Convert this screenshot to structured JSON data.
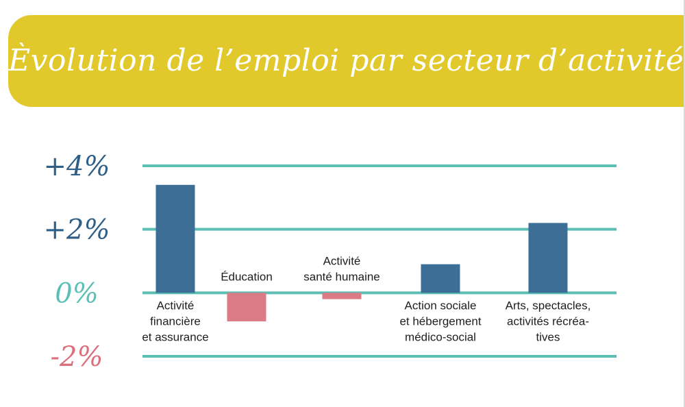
{
  "title": "Èvolution de l’emploi par secteur d’activité",
  "colors": {
    "banner": "#e1c92b",
    "title_text": "#ffffff",
    "gridline": "#5bbfb4",
    "positive_bar": "#3d6e96",
    "negative_bar": "#db7b85",
    "tick_positive": "#2f5e86",
    "tick_zero": "#5bbfb4",
    "tick_negative": "#d9707c",
    "label_text": "#1e1e1e"
  },
  "chart_data": {
    "type": "bar",
    "title": "Èvolution de l’emploi par secteur d’activité",
    "categories": [
      "Activité financière et assurance",
      "Éducation",
      "Activité santé humaine",
      "Action sociale et hébergement médico-social",
      "Arts, spectacles, activités récréatives"
    ],
    "category_label_lines": [
      [
        "Activité",
        "financière",
        "et assurance"
      ],
      [
        "Éducation"
      ],
      [
        "Activité",
        "santé humaine"
      ],
      [
        "Action sociale",
        "et hébergement",
        "médico-social"
      ],
      [
        "Arts, spectacles,",
        "activités récréa-",
        "tives"
      ]
    ],
    "values": [
      3.4,
      -0.9,
      -0.2,
      0.9,
      2.2
    ],
    "unit": "%",
    "ylim": [
      -2,
      4
    ],
    "yticks": [
      4,
      2,
      0,
      -2
    ],
    "ytick_labels": [
      "+4%",
      "+2%",
      "0%",
      "-2%"
    ],
    "grid": true,
    "legend": "none"
  }
}
